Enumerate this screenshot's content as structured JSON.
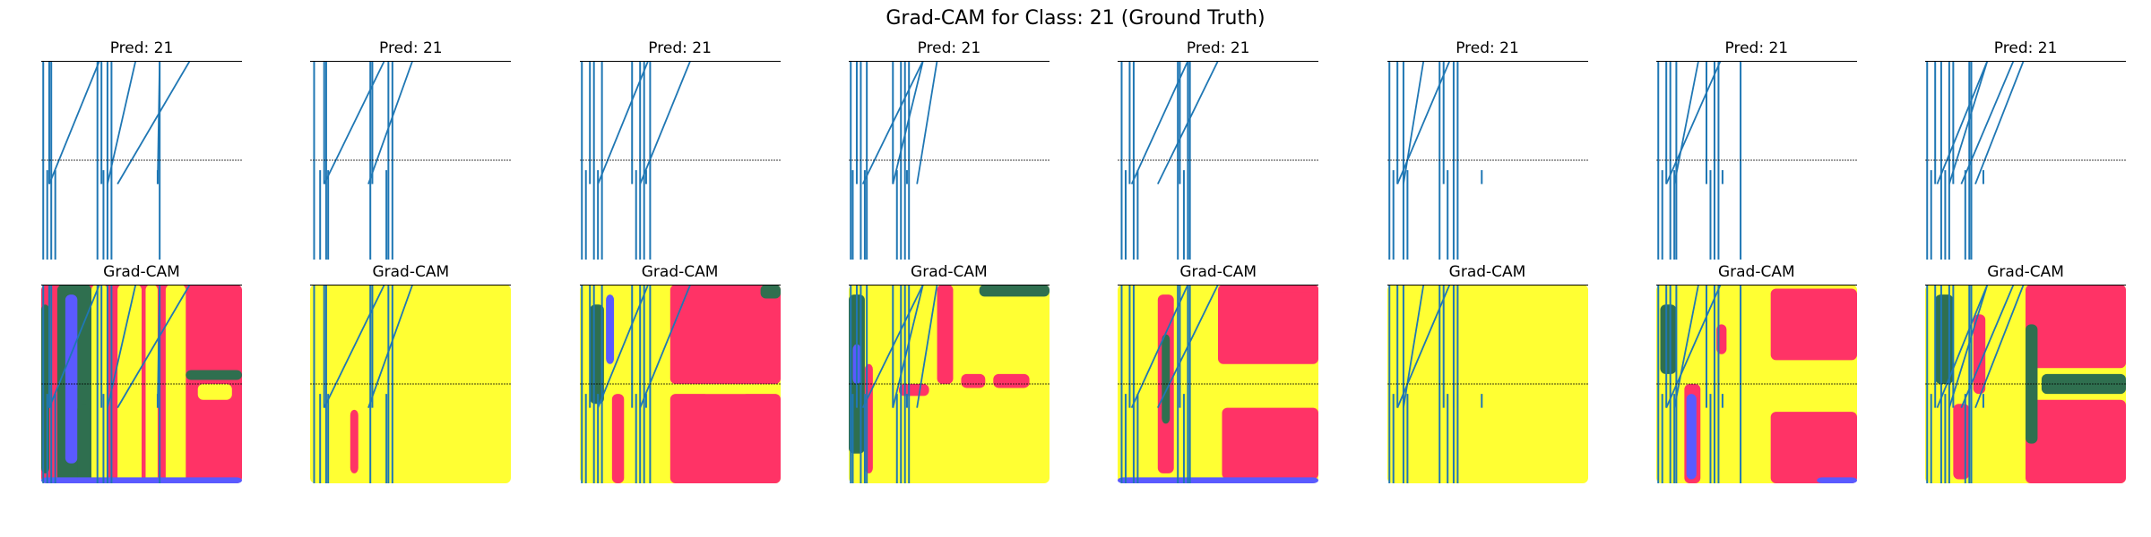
{
  "figure": {
    "title": "Grad-CAM for Class: 21 (Ground Truth)"
  },
  "colors": {
    "signal": "#1f77b4",
    "cam_yellow": "#ffff33",
    "cam_red": "#ff3366",
    "cam_green": "#2f6f4f",
    "cam_purple": "#5a5aff",
    "axis": "#000000"
  },
  "chart_data": [
    {
      "type": "line",
      "title": "Pred: 21",
      "row": "signal",
      "column": 1,
      "grid": false
    },
    {
      "type": "line",
      "title": "Pred: 21",
      "row": "signal",
      "column": 2,
      "grid": false
    },
    {
      "type": "line",
      "title": "Pred: 21",
      "row": "signal",
      "column": 3,
      "grid": false
    },
    {
      "type": "line",
      "title": "Pred: 21",
      "row": "signal",
      "column": 4,
      "grid": false
    },
    {
      "type": "line",
      "title": "Pred: 21",
      "row": "signal",
      "column": 5,
      "grid": false
    },
    {
      "type": "line",
      "title": "Pred: 21",
      "row": "signal",
      "column": 6,
      "grid": false
    },
    {
      "type": "line",
      "title": "Pred: 21",
      "row": "signal",
      "column": 7,
      "grid": false
    },
    {
      "type": "line",
      "title": "Pred: 21",
      "row": "signal",
      "column": 8,
      "grid": false
    },
    {
      "type": "heatmap",
      "title": "Grad-CAM",
      "row": "overlay",
      "column": 1,
      "grid": false
    },
    {
      "type": "heatmap",
      "title": "Grad-CAM",
      "row": "overlay",
      "column": 2,
      "grid": false
    },
    {
      "type": "heatmap",
      "title": "Grad-CAM",
      "row": "overlay",
      "column": 3,
      "grid": false
    },
    {
      "type": "heatmap",
      "title": "Grad-CAM",
      "row": "overlay",
      "column": 4,
      "grid": false
    },
    {
      "type": "heatmap",
      "title": "Grad-CAM",
      "row": "overlay",
      "column": 5,
      "grid": false
    },
    {
      "type": "heatmap",
      "title": "Grad-CAM",
      "row": "overlay",
      "column": 6,
      "grid": false
    },
    {
      "type": "heatmap",
      "title": "Grad-CAM",
      "row": "overlay",
      "column": 7,
      "grid": false
    },
    {
      "type": "heatmap",
      "title": "Grad-CAM",
      "row": "overlay",
      "column": 8,
      "grid": false
    }
  ]
}
